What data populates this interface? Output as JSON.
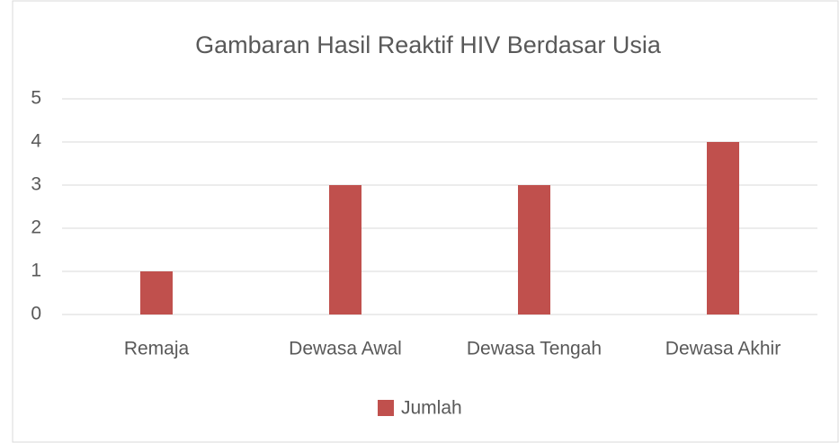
{
  "chart_data": {
    "type": "bar",
    "title": "Gambaran Hasil Reaktif HIV Berdasar Usia",
    "categories": [
      "Remaja",
      "Dewasa Awal",
      "Dewasa Tengah",
      "Dewasa Akhir"
    ],
    "series": [
      {
        "name": "Jumlah",
        "color": "#c0504d",
        "values": [
          1,
          3,
          3,
          4
        ]
      }
    ],
    "ylim": [
      0,
      5
    ],
    "yticks": [
      0,
      1,
      2,
      3,
      4,
      5
    ],
    "grid": true,
    "legend": "bottom"
  }
}
